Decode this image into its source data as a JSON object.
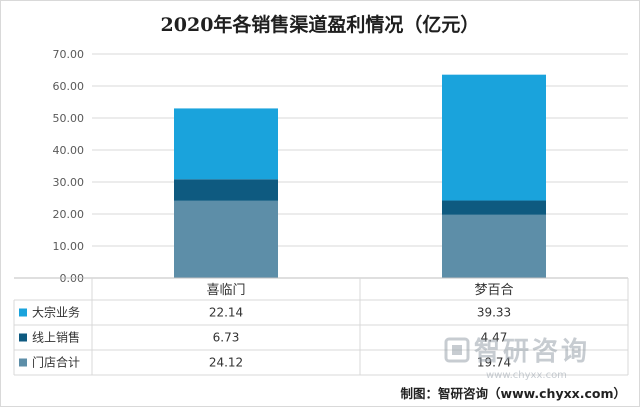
{
  "chart_data": {
    "type": "bar",
    "stacked": true,
    "title": "2020年各销售渠道盈利情况（亿元）",
    "categories": [
      "喜临门",
      "梦百合"
    ],
    "series": [
      {
        "name": "大宗业务",
        "values": [
          22.14,
          39.33
        ],
        "color": "#1aa3dc"
      },
      {
        "name": "线上销售",
        "values": [
          6.73,
          4.47
        ],
        "color": "#0e5a80"
      },
      {
        "name": "门店合计",
        "values": [
          24.12,
          19.74
        ],
        "color": "#5d8ea8"
      }
    ],
    "ylim": [
      0,
      70
    ],
    "yticks": [
      "0.00",
      "10.00",
      "20.00",
      "30.00",
      "40.00",
      "50.00",
      "60.00",
      "70.00"
    ],
    "table_values": [
      [
        "22.14",
        "39.33"
      ],
      [
        "6.73",
        "4.47"
      ],
      [
        "24.12",
        "19.74"
      ]
    ],
    "grid": true,
    "legend": "data-table-left"
  },
  "watermark": {
    "name": "智研咨询",
    "url": "www.chyxx.com"
  },
  "source": "制图：智研咨询（www.chyxx.com）"
}
